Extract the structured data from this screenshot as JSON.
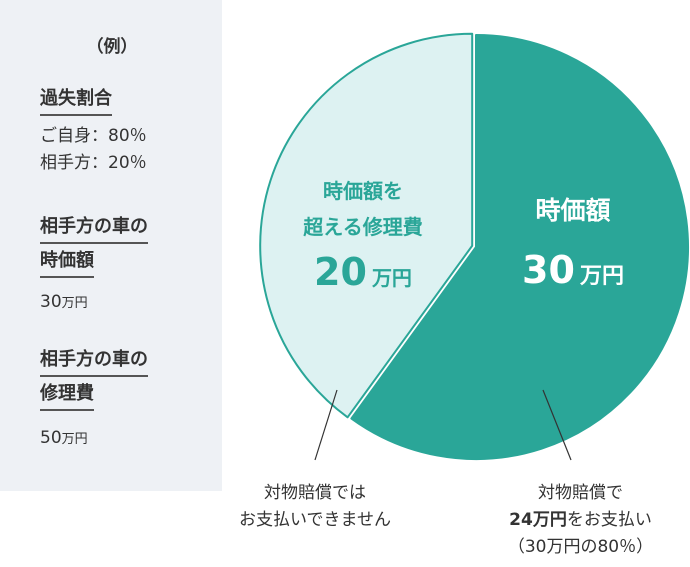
{
  "sidebar": {
    "example_label": "（例）",
    "fault_heading": "過失割合",
    "fault_self": "ご自身：80％",
    "fault_other": "相手方：20％",
    "market_heading_1": "相手方の車の",
    "market_heading_2": "時価額",
    "market_value_num": "30",
    "market_value_unit": "万円",
    "repair_heading_1": "相手方の車の",
    "repair_heading_2": "修理費",
    "repair_value_num": "50",
    "repair_value_unit": "万円"
  },
  "chart_data": {
    "type": "pie",
    "categories": [
      "時価額",
      "時価額を超える修理費"
    ],
    "values": [
      30,
      20
    ],
    "unit": "万円",
    "colors": [
      "#2aa698",
      "#ddf2f2"
    ],
    "slice_labels": [
      {
        "lines": [
          "時価額"
        ],
        "value": "30",
        "unit": "万円"
      },
      {
        "lines": [
          "時価額を",
          "超える修理費"
        ],
        "value": "20",
        "unit": "万円"
      }
    ],
    "annotations": {
      "left_line1": "対物賠償では",
      "left_line2": "お支払いできません",
      "right_line1": "対物賠償で",
      "right_amount": "24万円",
      "right_suffix": "をお支払い",
      "right_line3": "（30万円の80％）"
    }
  }
}
